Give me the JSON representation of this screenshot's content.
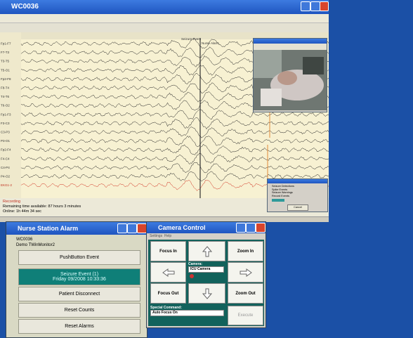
{
  "eeg_window": {
    "title": "WC0036",
    "annotations": [
      "Seizure Event",
      "Nurse Alarm"
    ],
    "channels": [
      "Fp1-F7",
      "F7-T3",
      "T3-T5",
      "T5-O1",
      "Fp2-F8",
      "F8-T4",
      "T4-T6",
      "T6-O2",
      "Fp1-F3",
      "F3-C3",
      "C3-P3",
      "P3-O1",
      "Fp2-F4",
      "F4-C4",
      "C4-P4",
      "P4-O2",
      "EKG1-2"
    ],
    "status": [
      "Recording",
      "Remaining time available: 87 hours 3 minutes",
      "Online: 1h 44m 34 sec"
    ],
    "detection_dialog": {
      "rows": [
        "Seizure Detections",
        "Spike Events",
        "Seizure Warnings",
        "Record Events"
      ],
      "button": "Cancel"
    }
  },
  "nurse_alarm": {
    "title": "Nurse Station Alarm",
    "lines": [
      "WC0036",
      "Demo TWinMonitor2"
    ],
    "buttons": [
      [
        "PushButton Event"
      ],
      [
        "Seizure Event (1)",
        "Friday 09/2008  10:33:36"
      ],
      [
        "Patient Disconnect"
      ],
      [
        "Reset Counts"
      ],
      [
        "Reset Alarms"
      ]
    ]
  },
  "camera_control": {
    "title": "Camera Control",
    "menu": [
      "Settings",
      "Help"
    ],
    "focus_in": "Focus In",
    "zoom_in": "Zoom In",
    "focus_out": "Focus Out",
    "zoom_out": "Zoom Out",
    "camera_label": "Camera:",
    "camera": "ICU Camera",
    "special_label": "Special Command:",
    "special": "Auto Focus On",
    "execute": "Execute"
  }
}
